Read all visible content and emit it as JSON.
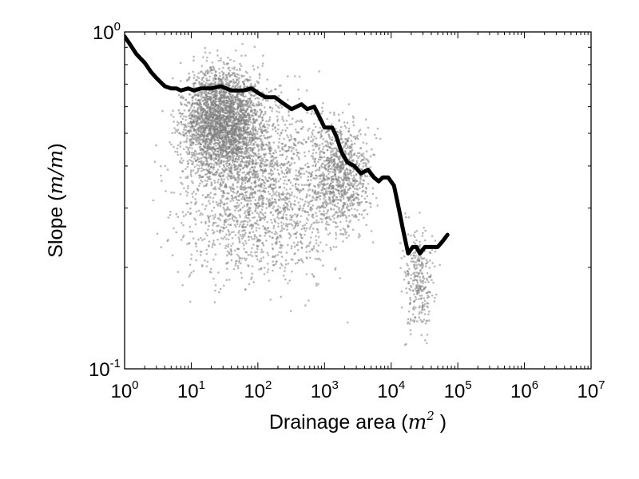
{
  "chart_data": {
    "type": "scatter",
    "x_scale": "log",
    "y_scale": "log",
    "xlim": [
      1,
      10000000
    ],
    "ylim": [
      0.1,
      1.0
    ],
    "grid": false,
    "xlabel": {
      "text": "Drainage area (",
      "math": "m",
      "sup": "2",
      "suffix": " )"
    },
    "ylabel": {
      "text": "Slope (",
      "math": "m/m",
      "suffix": ")"
    },
    "x_ticks": [
      {
        "value": 1,
        "base": "10",
        "exp": "0"
      },
      {
        "value": 10,
        "base": "10",
        "exp": "1"
      },
      {
        "value": 100,
        "base": "10",
        "exp": "2"
      },
      {
        "value": 1000,
        "base": "10",
        "exp": "3"
      },
      {
        "value": 10000,
        "base": "10",
        "exp": "4"
      },
      {
        "value": 100000,
        "base": "10",
        "exp": "5"
      },
      {
        "value": 1000000,
        "base": "10",
        "exp": "6"
      },
      {
        "value": 10000000,
        "base": "10",
        "exp": "7"
      }
    ],
    "y_ticks": [
      {
        "value": 0.1,
        "base": "10",
        "exp": "-1"
      },
      {
        "value": 1.0,
        "base": "10",
        "exp": "0"
      }
    ],
    "scatter_color": "#808080",
    "line_color": "#000000",
    "scatter_density": [
      {
        "x_range": [
          1,
          10000
        ],
        "y_range": [
          0.12,
          1.0
        ],
        "weight": 0.35
      },
      {
        "x_range": [
          3,
          300
        ],
        "y_range": [
          0.3,
          1.0
        ],
        "weight": 0.45
      },
      {
        "x_range": [
          300,
          10000
        ],
        "y_range": [
          0.2,
          0.7
        ],
        "weight": 0.15
      },
      {
        "x_range": [
          10000,
          70000
        ],
        "y_range": [
          0.1,
          0.35
        ],
        "weight": 0.05
      }
    ],
    "series": [
      {
        "type": "line",
        "points": [
          [
            1.0,
            0.97
          ],
          [
            1.2,
            0.92
          ],
          [
            1.5,
            0.86
          ],
          [
            2.0,
            0.81
          ],
          [
            2.5,
            0.76
          ],
          [
            3.0,
            0.73
          ],
          [
            4.0,
            0.69
          ],
          [
            5.0,
            0.68
          ],
          [
            6.0,
            0.68
          ],
          [
            7.0,
            0.67
          ],
          [
            9.0,
            0.68
          ],
          [
            11.0,
            0.67
          ],
          [
            14.0,
            0.68
          ],
          [
            20.0,
            0.68
          ],
          [
            28.0,
            0.69
          ],
          [
            40.0,
            0.67
          ],
          [
            60.0,
            0.67
          ],
          [
            80.0,
            0.68
          ],
          [
            100.0,
            0.66
          ],
          [
            130.0,
            0.64
          ],
          [
            180.0,
            0.64
          ],
          [
            250.0,
            0.61
          ],
          [
            320.0,
            0.59
          ],
          [
            450.0,
            0.61
          ],
          [
            550.0,
            0.59
          ],
          [
            700.0,
            0.6
          ],
          [
            800.0,
            0.57
          ],
          [
            1000.0,
            0.52
          ],
          [
            1300.0,
            0.52
          ],
          [
            1500.0,
            0.49
          ],
          [
            1800.0,
            0.44
          ],
          [
            2200.0,
            0.41
          ],
          [
            2800.0,
            0.4
          ],
          [
            3500.0,
            0.38
          ],
          [
            4500.0,
            0.39
          ],
          [
            5500.0,
            0.37
          ],
          [
            6500.0,
            0.36
          ],
          [
            7500.0,
            0.37
          ],
          [
            9000.0,
            0.37
          ],
          [
            11000.0,
            0.35
          ],
          [
            13000.0,
            0.3
          ],
          [
            15000.0,
            0.26
          ],
          [
            18000.0,
            0.22
          ],
          [
            21000.0,
            0.23
          ],
          [
            24000.0,
            0.23
          ],
          [
            27000.0,
            0.22
          ],
          [
            32000.0,
            0.23
          ],
          [
            40000.0,
            0.23
          ],
          [
            50000.0,
            0.23
          ],
          [
            60000.0,
            0.24
          ],
          [
            70000.0,
            0.25
          ]
        ]
      }
    ]
  }
}
